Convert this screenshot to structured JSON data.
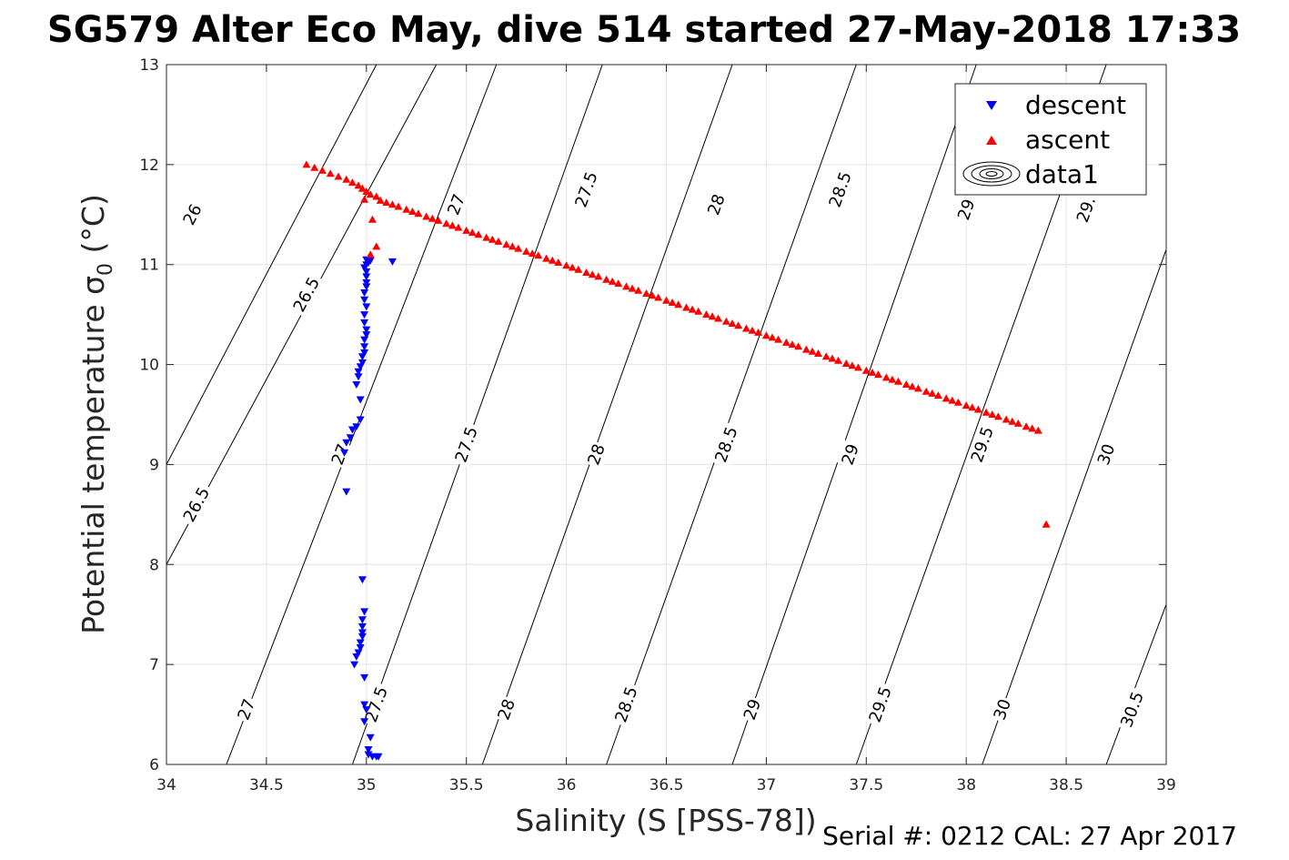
{
  "title": "SG579 Alter Eco May, dive 514 started 27-May-2018 17:33",
  "footer": "Serial #: 0212  CAL: 27 Apr 2017",
  "chart_data": {
    "type": "scatter",
    "xlabel": "Salinity (S [PSS-78])",
    "ylabel": "Potential temperature σ",
    "ylabel_sub": "0",
    "ylabel_unit": " (°C)",
    "xlim": [
      34,
      39
    ],
    "ylim": [
      6,
      13
    ],
    "xticks": [
      34,
      34.5,
      35,
      35.5,
      36,
      36.5,
      37,
      37.5,
      38,
      38.5,
      39
    ],
    "xtick_labels": [
      "34",
      "34.5",
      "35",
      "35.5",
      "36",
      "36.5",
      "37",
      "37.5",
      "38",
      "38.5",
      "39"
    ],
    "yticks": [
      6,
      7,
      8,
      9,
      10,
      11,
      12,
      13
    ],
    "ytick_labels": [
      "6",
      "7",
      "8",
      "9",
      "10",
      "11",
      "12",
      "13"
    ],
    "grid": true,
    "legend": {
      "placement": "top-right",
      "entries": [
        {
          "label": "descent",
          "marker": "triangle-down",
          "color": "#0000ff"
        },
        {
          "label": "ascent",
          "marker": "triangle-up",
          "color": "#ff0000"
        },
        {
          "label": "data1",
          "marker": "contour",
          "color": "#000000"
        }
      ]
    },
    "series": [
      {
        "name": "descent",
        "color": "#0000ff",
        "marker": "triangle-down",
        "points": [
          [
            35.0,
            11.05
          ],
          [
            35.02,
            11.04
          ],
          [
            35.01,
            11.02
          ],
          [
            35.0,
            11.0
          ],
          [
            34.99,
            10.97
          ],
          [
            35.13,
            11.03
          ],
          [
            35.0,
            10.93
          ],
          [
            35.0,
            10.88
          ],
          [
            35.0,
            10.82
          ],
          [
            35.0,
            10.78
          ],
          [
            34.99,
            10.72
          ],
          [
            34.99,
            10.65
          ],
          [
            35.0,
            10.58
          ],
          [
            34.99,
            10.5
          ],
          [
            34.99,
            10.42
          ],
          [
            35.0,
            10.35
          ],
          [
            35.0,
            10.3
          ],
          [
            34.99,
            10.25
          ],
          [
            34.99,
            10.18
          ],
          [
            34.99,
            10.12
          ],
          [
            34.98,
            10.08
          ],
          [
            34.98,
            10.02
          ],
          [
            34.97,
            9.98
          ],
          [
            34.96,
            9.93
          ],
          [
            34.96,
            9.88
          ],
          [
            34.95,
            9.8
          ],
          [
            34.97,
            9.65
          ],
          [
            34.97,
            9.45
          ],
          [
            34.95,
            9.38
          ],
          [
            34.93,
            9.35
          ],
          [
            34.92,
            9.27
          ],
          [
            34.9,
            9.22
          ],
          [
            34.89,
            9.12
          ],
          [
            34.9,
            8.73
          ],
          [
            34.98,
            7.85
          ],
          [
            34.99,
            7.53
          ],
          [
            34.98,
            7.45
          ],
          [
            34.98,
            7.38
          ],
          [
            34.98,
            7.32
          ],
          [
            34.98,
            7.28
          ],
          [
            34.97,
            7.22
          ],
          [
            34.97,
            7.17
          ],
          [
            34.96,
            7.12
          ],
          [
            34.95,
            7.08
          ],
          [
            34.94,
            7.0
          ],
          [
            34.99,
            6.87
          ],
          [
            34.99,
            6.6
          ],
          [
            35.0,
            6.55
          ],
          [
            34.99,
            6.43
          ],
          [
            35.02,
            6.27
          ],
          [
            35.01,
            6.15
          ],
          [
            35.01,
            6.1
          ],
          [
            35.03,
            6.08
          ],
          [
            35.05,
            6.08
          ],
          [
            35.06,
            6.08
          ]
        ]
      },
      {
        "name": "ascent",
        "color": "#ff0000",
        "marker": "triangle-up",
        "points": [
          [
            34.7,
            12.0
          ],
          [
            34.74,
            11.97
          ],
          [
            34.78,
            11.94
          ],
          [
            34.82,
            11.91
          ],
          [
            34.86,
            11.88
          ],
          [
            34.9,
            11.85
          ],
          [
            34.93,
            11.82
          ],
          [
            34.96,
            11.79
          ],
          [
            34.98,
            11.76
          ],
          [
            35.0,
            11.73
          ],
          [
            34.99,
            11.65
          ],
          [
            35.02,
            11.7
          ],
          [
            35.05,
            11.68
          ],
          [
            35.03,
            11.45
          ],
          [
            35.05,
            11.18
          ],
          [
            35.02,
            11.1
          ],
          [
            35.07,
            11.64
          ],
          [
            35.1,
            11.62
          ],
          [
            35.13,
            11.6
          ],
          [
            35.16,
            11.58
          ],
          [
            35.2,
            11.55
          ],
          [
            35.23,
            11.53
          ],
          [
            35.26,
            11.51
          ],
          [
            35.3,
            11.48
          ],
          [
            35.33,
            11.46
          ],
          [
            35.36,
            11.44
          ],
          [
            35.4,
            11.41
          ],
          [
            35.43,
            11.39
          ],
          [
            35.46,
            11.37
          ],
          [
            35.5,
            11.34
          ],
          [
            35.53,
            11.32
          ],
          [
            35.56,
            11.3
          ],
          [
            35.6,
            11.27
          ],
          [
            35.63,
            11.25
          ],
          [
            35.66,
            11.23
          ],
          [
            35.7,
            11.2
          ],
          [
            35.73,
            11.18
          ],
          [
            35.76,
            11.16
          ],
          [
            35.8,
            11.13
          ],
          [
            35.83,
            11.11
          ],
          [
            35.86,
            11.09
          ],
          [
            35.9,
            11.06
          ],
          [
            35.93,
            11.04
          ],
          [
            35.96,
            11.02
          ],
          [
            36.0,
            10.99
          ],
          [
            36.03,
            10.97
          ],
          [
            36.06,
            10.95
          ],
          [
            36.1,
            10.92
          ],
          [
            36.13,
            10.9
          ],
          [
            36.16,
            10.88
          ],
          [
            36.2,
            10.85
          ],
          [
            36.23,
            10.83
          ],
          [
            36.26,
            10.81
          ],
          [
            36.3,
            10.78
          ],
          [
            36.33,
            10.76
          ],
          [
            36.36,
            10.74
          ],
          [
            36.4,
            10.71
          ],
          [
            36.43,
            10.69
          ],
          [
            36.46,
            10.67
          ],
          [
            36.5,
            10.64
          ],
          [
            36.53,
            10.62
          ],
          [
            36.56,
            10.6
          ],
          [
            36.6,
            10.57
          ],
          [
            36.63,
            10.55
          ],
          [
            36.66,
            10.53
          ],
          [
            36.7,
            10.5
          ],
          [
            36.73,
            10.48
          ],
          [
            36.76,
            10.46
          ],
          [
            36.8,
            10.43
          ],
          [
            36.83,
            10.41
          ],
          [
            36.86,
            10.39
          ],
          [
            36.9,
            10.36
          ],
          [
            36.93,
            10.34
          ],
          [
            36.96,
            10.32
          ],
          [
            37.0,
            10.29
          ],
          [
            37.03,
            10.27
          ],
          [
            37.06,
            10.25
          ],
          [
            37.1,
            10.22
          ],
          [
            37.13,
            10.2
          ],
          [
            37.16,
            10.18
          ],
          [
            37.2,
            10.15
          ],
          [
            37.23,
            10.13
          ],
          [
            37.26,
            10.11
          ],
          [
            37.3,
            10.08
          ],
          [
            37.33,
            10.06
          ],
          [
            37.36,
            10.04
          ],
          [
            37.4,
            10.01
          ],
          [
            37.43,
            9.99
          ],
          [
            37.46,
            9.97
          ],
          [
            37.5,
            9.94
          ],
          [
            37.53,
            9.92
          ],
          [
            37.56,
            9.9
          ],
          [
            37.6,
            9.87
          ],
          [
            37.63,
            9.85
          ],
          [
            37.66,
            9.83
          ],
          [
            37.7,
            9.8
          ],
          [
            37.73,
            9.78
          ],
          [
            37.76,
            9.76
          ],
          [
            37.8,
            9.73
          ],
          [
            37.83,
            9.71
          ],
          [
            37.86,
            9.69
          ],
          [
            37.9,
            9.66
          ],
          [
            37.93,
            9.64
          ],
          [
            37.96,
            9.62
          ],
          [
            38.0,
            9.59
          ],
          [
            38.03,
            9.57
          ],
          [
            38.06,
            9.55
          ],
          [
            38.1,
            9.52
          ],
          [
            38.13,
            9.5
          ],
          [
            38.16,
            9.48
          ],
          [
            38.2,
            9.45
          ],
          [
            38.23,
            9.43
          ],
          [
            38.26,
            9.41
          ],
          [
            38.3,
            9.38
          ],
          [
            38.33,
            9.36
          ],
          [
            38.36,
            9.34
          ],
          [
            38.4,
            8.4
          ]
        ]
      }
    ],
    "contours": [
      {
        "label": "26",
        "points": [
          [
            34.0,
            9.0
          ],
          [
            35.05,
            13.0
          ]
        ],
        "label_at": [
          34.13,
          11.5
        ]
      },
      {
        "label": "26.5",
        "points": [
          [
            34.0,
            8.0
          ],
          [
            35.35,
            13.0
          ]
        ],
        "label_at": [
          34.15,
          8.6
        ]
      },
      {
        "label": "26.5",
        "points": [
          [
            34.0,
            8.0
          ],
          [
            35.35,
            13.0
          ]
        ],
        "label_at": [
          34.7,
          10.7
        ]
      },
      {
        "label": "27",
        "points": [
          [
            34.3,
            6.0
          ],
          [
            35.65,
            13.0
          ]
        ],
        "label_at": [
          34.4,
          6.55
        ]
      },
      {
        "label": "27",
        "points": [
          [
            34.3,
            6.0
          ],
          [
            35.65,
            13.0
          ]
        ],
        "label_at": [
          34.87,
          9.1
        ]
      },
      {
        "label": "27",
        "points": [
          [
            34.3,
            6.0
          ],
          [
            35.65,
            13.0
          ]
        ],
        "label_at": [
          35.45,
          11.6
        ]
      },
      {
        "label": "27.5",
        "points": [
          [
            34.93,
            6.0
          ],
          [
            36.18,
            13.0
          ]
        ],
        "label_at": [
          35.05,
          6.6
        ]
      },
      {
        "label": "27.5",
        "points": [
          [
            34.93,
            6.0
          ],
          [
            36.18,
            13.0
          ]
        ],
        "label_at": [
          35.5,
          9.2
        ]
      },
      {
        "label": "27.5",
        "points": [
          [
            34.93,
            6.0
          ],
          [
            36.18,
            13.0
          ]
        ],
        "label_at": [
          36.1,
          11.75
        ]
      },
      {
        "label": "28",
        "points": [
          [
            35.58,
            6.0
          ],
          [
            36.83,
            13.0
          ]
        ],
        "label_at": [
          35.7,
          6.55
        ]
      },
      {
        "label": "28",
        "points": [
          [
            35.58,
            6.0
          ],
          [
            36.83,
            13.0
          ]
        ],
        "label_at": [
          36.15,
          9.1
        ]
      },
      {
        "label": "28",
        "points": [
          [
            35.58,
            6.0
          ],
          [
            36.83,
            13.0
          ]
        ],
        "label_at": [
          36.75,
          11.6
        ]
      },
      {
        "label": "28.5",
        "points": [
          [
            36.2,
            6.0
          ],
          [
            37.45,
            13.0
          ]
        ],
        "label_at": [
          36.3,
          6.6
        ]
      },
      {
        "label": "28.5",
        "points": [
          [
            36.2,
            6.0
          ],
          [
            37.45,
            13.0
          ]
        ],
        "label_at": [
          36.8,
          9.2
        ]
      },
      {
        "label": "28.5",
        "points": [
          [
            36.2,
            6.0
          ],
          [
            37.45,
            13.0
          ]
        ],
        "label_at": [
          37.37,
          11.75
        ]
      },
      {
        "label": "29",
        "points": [
          [
            36.83,
            6.0
          ],
          [
            38.05,
            13.0
          ]
        ],
        "label_at": [
          36.93,
          6.55
        ]
      },
      {
        "label": "29",
        "points": [
          [
            36.83,
            6.0
          ],
          [
            38.05,
            13.0
          ]
        ],
        "label_at": [
          37.42,
          9.1
        ]
      },
      {
        "label": "29",
        "points": [
          [
            36.83,
            6.0
          ],
          [
            38.05,
            13.0
          ]
        ],
        "label_at": [
          38.0,
          11.55
        ]
      },
      {
        "label": "29.5",
        "points": [
          [
            37.45,
            6.0
          ],
          [
            38.7,
            13.0
          ]
        ],
        "label_at": [
          37.57,
          6.6
        ]
      },
      {
        "label": "29.5",
        "points": [
          [
            37.45,
            6.0
          ],
          [
            38.7,
            13.0
          ]
        ],
        "label_at": [
          38.08,
          9.2
        ]
      },
      {
        "label": "29.",
        "points": [
          [
            37.45,
            6.0
          ],
          [
            38.7,
            13.0
          ]
        ],
        "label_at": [
          38.6,
          11.55
        ]
      },
      {
        "label": "30",
        "points": [
          [
            38.08,
            6.0
          ],
          [
            39.0,
            11.15
          ]
        ],
        "label_at": [
          38.18,
          6.55
        ]
      },
      {
        "label": "30",
        "points": [
          [
            38.08,
            6.0
          ],
          [
            39.0,
            11.15
          ]
        ],
        "label_at": [
          38.7,
          9.1
        ]
      },
      {
        "label": "30.5",
        "points": [
          [
            38.7,
            6.0
          ],
          [
            39.0,
            7.6
          ]
        ],
        "label_at": [
          38.83,
          6.55
        ]
      }
    ]
  }
}
